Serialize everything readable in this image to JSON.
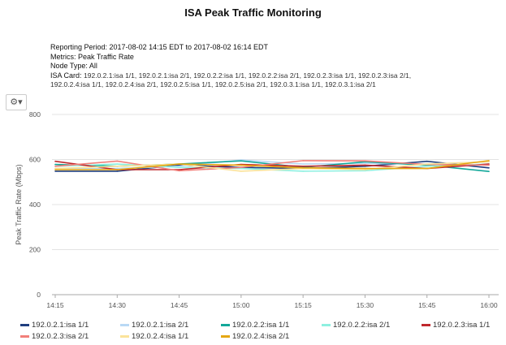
{
  "title": "ISA Peak Traffic Monitoring",
  "meta": {
    "reporting_period": "Reporting Period: 2017-08-02 14:15 EDT to 2017-08-02 16:14 EDT",
    "metrics": "Metrics: Peak Traffic Rate",
    "node_type": "Node Type: All",
    "isa_card_label": "ISA Card:",
    "isa_card_line1": "192.0.2.1:isa 1/1, 192.0.2.1:isa 2/1, 192.0.2.2:isa 1/1, 192.0.2.2:isa 2/1, 192.0.2.3:isa 1/1, 192.0.2.3:isa 2/1,",
    "isa_card_line2": "192.0.2.4:isa 1/1, 192.0.2.4:isa 2/1, 192.0.2.5:isa 1/1, 192.0.2.5:isa 2/1, 192.0.3.1:isa 1/1, 192.0.3.1:isa 2/1"
  },
  "toolbar": {
    "settings_icon": "gear-icon",
    "settings_caret": "▾"
  },
  "chart_data": {
    "type": "line",
    "title": "ISA Peak Traffic Monitoring",
    "ylabel": "Peak Traffic Rate (Mbps)",
    "xlabel": "",
    "ylim": [
      0,
      800
    ],
    "yticks": [
      "0",
      "200",
      "400",
      "600",
      "800"
    ],
    "categories": [
      "14:15",
      "14:30",
      "14:45",
      "15:00",
      "15:15",
      "15:30",
      "15:45",
      "16:00"
    ],
    "grid": true,
    "legend": "bottom",
    "series": [
      {
        "name": "192.0.2.1:isa 1/1",
        "color": "#1f3f7f",
        "values": [
          548,
          548,
          575,
          565,
          560,
          570,
          592,
          563
        ]
      },
      {
        "name": "192.0.2.1:isa 2/1",
        "color": "#b9d9f5",
        "values": [
          560,
          560,
          570,
          598,
          580,
          583,
          580,
          590
        ]
      },
      {
        "name": "192.0.2.2:isa 1/1",
        "color": "#13a89a",
        "values": [
          578,
          570,
          580,
          594,
          565,
          590,
          575,
          547
        ]
      },
      {
        "name": "192.0.2.2:isa 2/1",
        "color": "#8ef0e0",
        "values": [
          570,
          580,
          565,
          560,
          548,
          550,
          570,
          580
        ]
      },
      {
        "name": "192.0.2.3:isa 1/1",
        "color": "#c0282d",
        "values": [
          592,
          555,
          555,
          578,
          570,
          575,
          560,
          580
        ]
      },
      {
        "name": "192.0.2.3:isa 2/1",
        "color": "#f27f7a",
        "values": [
          570,
          593,
          550,
          565,
          595,
          594,
          578,
          575
        ]
      },
      {
        "name": "192.0.2.4:isa 1/1",
        "color": "#fbe39a",
        "values": [
          560,
          570,
          580,
          548,
          560,
          555,
          580,
          590
        ]
      },
      {
        "name": "192.0.2.4:isa 2/1",
        "color": "#e5a712",
        "values": [
          555,
          555,
          580,
          575,
          563,
          560,
          560,
          595
        ]
      }
    ]
  }
}
